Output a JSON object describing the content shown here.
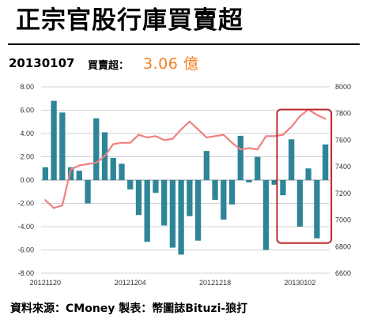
{
  "title": "正宗官股行庫買賣超",
  "header": {
    "date": "20130107",
    "stat_label": "買賣超：",
    "stat_value": "3.06 億"
  },
  "footer": "資料來源：CMoney 製表：幣圖誌Bituzi-狼打",
  "colors": {
    "bar": "#2e8597",
    "line": "#f08080",
    "highlight": "#c0272d",
    "grid": "#d0d0d0"
  },
  "chart_data": {
    "type": "bar",
    "x_tick_labels": [
      "20121120",
      "20121204",
      "20121218",
      "20130102"
    ],
    "left_axis": {
      "min": -8,
      "max": 8,
      "step": 2,
      "tick_labels": [
        "8.00",
        "6.00",
        "4.00",
        "2.00",
        "0.00",
        "-2.00",
        "-4.00",
        "-6.00",
        "-8.00"
      ]
    },
    "right_axis": {
      "min": 6600,
      "max": 8000,
      "step": 200,
      "tick_labels": [
        "8000",
        "7800",
        "7600",
        "7400",
        "7200",
        "7000",
        "6800",
        "6600"
      ]
    },
    "series": [
      {
        "axis": "left",
        "type": "bar",
        "values": [
          1.1,
          6.8,
          5.8,
          1.1,
          0.8,
          -2.0,
          5.3,
          4.1,
          1.9,
          1.4,
          -0.8,
          -3.0,
          -5.3,
          -1.1,
          -3.9,
          -5.8,
          -6.4,
          -3.1,
          -5.2,
          2.5,
          -1.7,
          -3.4,
          -2.1,
          3.8,
          -0.2,
          2.0,
          -6.0,
          -0.4,
          -1.3,
          3.5,
          -4.0,
          1.0,
          -5.0,
          3.06
        ]
      },
      {
        "axis": "right",
        "type": "line",
        "values": [
          7150,
          7090,
          7110,
          7380,
          7410,
          7420,
          7430,
          7480,
          7570,
          7580,
          7580,
          7640,
          7620,
          7630,
          7600,
          7610,
          7680,
          7740,
          7680,
          7620,
          7630,
          7640,
          7580,
          7530,
          7540,
          7530,
          7630,
          7630,
          7640,
          7700,
          7780,
          7830,
          7790,
          7760
        ]
      }
    ],
    "grid": true,
    "highlight": "last 6 bars boxed in red"
  }
}
